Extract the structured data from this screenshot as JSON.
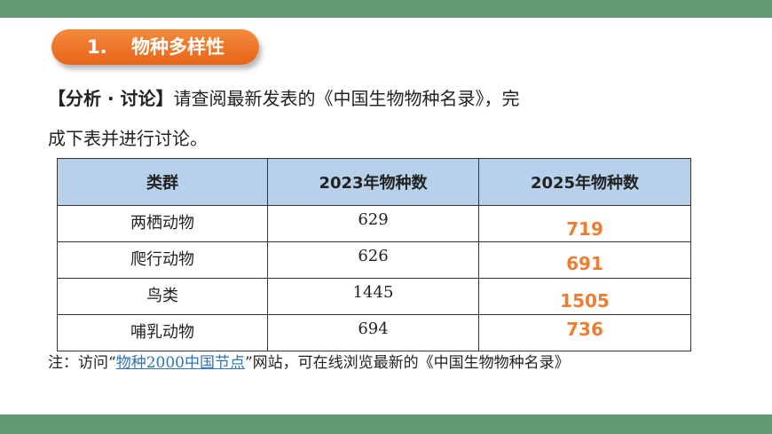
{
  "section": {
    "number": "1.",
    "title": "物种多样性"
  },
  "paragraph": {
    "tag": "【分析 · 讨论】",
    "line1": "请查阅最新发表的《中国生物物种名录》，完",
    "line2": "成下表并进行讨论。"
  },
  "table": {
    "headers": [
      "类群",
      "2023年物种数",
      "2025年物种数"
    ],
    "rows": [
      {
        "group": "两栖动物",
        "y2023": "629",
        "y2025": "719"
      },
      {
        "group": "爬行动物",
        "y2023": "626",
        "y2025": "691"
      },
      {
        "group": "鸟类",
        "y2023": "1445",
        "y2025": "1505"
      },
      {
        "group": "哺乳动物",
        "y2023": "694",
        "y2025": "736"
      }
    ]
  },
  "note": {
    "prefix": "注：访问“",
    "link": "物种2000中国节点",
    "suffix": "”网站，可在线浏览最新的《中国生物物种名录》"
  },
  "colors": {
    "banner": "#5f9a72",
    "pill": "#e8641a",
    "header_fill": "#b7d1ea",
    "answer_text": "#ed7d31",
    "link": "#2e74b5"
  }
}
